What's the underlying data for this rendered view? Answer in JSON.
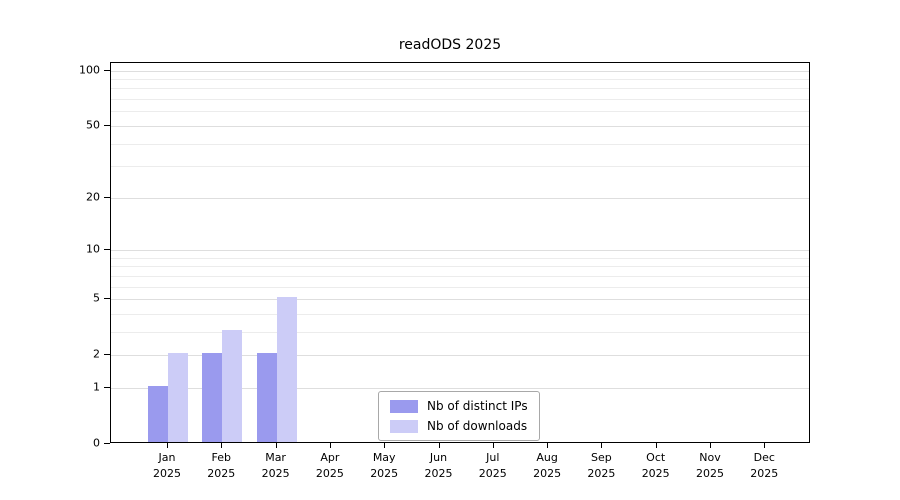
{
  "figure": {
    "background": "#ffffff",
    "axis_color": "#000000",
    "grid_major_color": "#dedede",
    "grid_minor_color": "#ececec"
  },
  "chart_data": {
    "type": "bar",
    "title": "readODS 2025",
    "categories": [
      "Jan",
      "Feb",
      "Mar",
      "Apr",
      "May",
      "Jun",
      "Jul",
      "Aug",
      "Sep",
      "Oct",
      "Nov",
      "Dec"
    ],
    "x_year_label": "2025",
    "series": [
      {
        "name": "Nb of distinct IPs",
        "color": "#9a9aee",
        "values": [
          1,
          2,
          2,
          0,
          0,
          0,
          0,
          0,
          0,
          0,
          0,
          0
        ]
      },
      {
        "name": "Nb of downloads",
        "color": "#ccccf7",
        "values": [
          2,
          3,
          5,
          0,
          0,
          0,
          0,
          0,
          0,
          0,
          0,
          0
        ]
      }
    ],
    "xlabel": "",
    "ylabel": "",
    "y_ticks": [
      0,
      1,
      2,
      5,
      10,
      20,
      50,
      100
    ],
    "y_minor_ticks": [
      3,
      4,
      6,
      7,
      8,
      9,
      30,
      40,
      60,
      70,
      80,
      90
    ],
    "y_scale": "log1p",
    "y_axis_max": 110,
    "ylim": [
      0,
      110
    ],
    "grid": "horizontal",
    "legend_position": "bottom-center"
  }
}
